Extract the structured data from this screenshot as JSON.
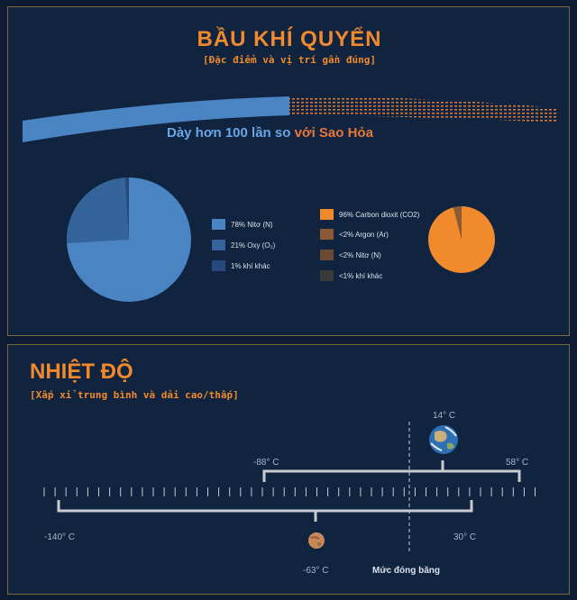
{
  "atmosphere": {
    "title": "BẦU KHÍ QUYỂN",
    "subtitle": "[Đặc điểm và vị trí gần đúng]",
    "thickness_text_a": "Dày hơn 100 lần so ",
    "thickness_text_b": "với Sao Hỏa",
    "earth_legend": [
      {
        "label": "78% Nitơ (N)",
        "value": 78,
        "color": "#4a84c2"
      },
      {
        "label": "21% Oxy (O₂)",
        "value": 21,
        "color": "#34649a"
      },
      {
        "label": "1% khí khác",
        "value": 1,
        "color": "#24497a"
      }
    ],
    "mars_legend": [
      {
        "label": "96% Carbon dioxit (CO2)",
        "value": 96,
        "color": "#f08a2c"
      },
      {
        "label": "<2% Argon (Ar)",
        "value": 2,
        "color": "#8a5a32"
      },
      {
        "label": "<2% Nitơ (N)",
        "value": 2,
        "color": "#6a4a32"
      },
      {
        "label": "<1% khí khác",
        "value": 1,
        "color": "#3a3a3a"
      }
    ]
  },
  "temperature": {
    "title": "NHIỆT ĐỘ",
    "subtitle": "[Xấp xỉ trung bình và dải cao/thấp]",
    "earth": {
      "avg": "14° C",
      "min": "-88° C",
      "max": "58° C"
    },
    "mars": {
      "avg": "-63° C",
      "min": "-140° C",
      "max": "30° C"
    },
    "freezing_label": "Mức đóng băng",
    "icons": {
      "earth": "earth-globe-icon",
      "mars": "mars-globe-icon"
    }
  }
}
